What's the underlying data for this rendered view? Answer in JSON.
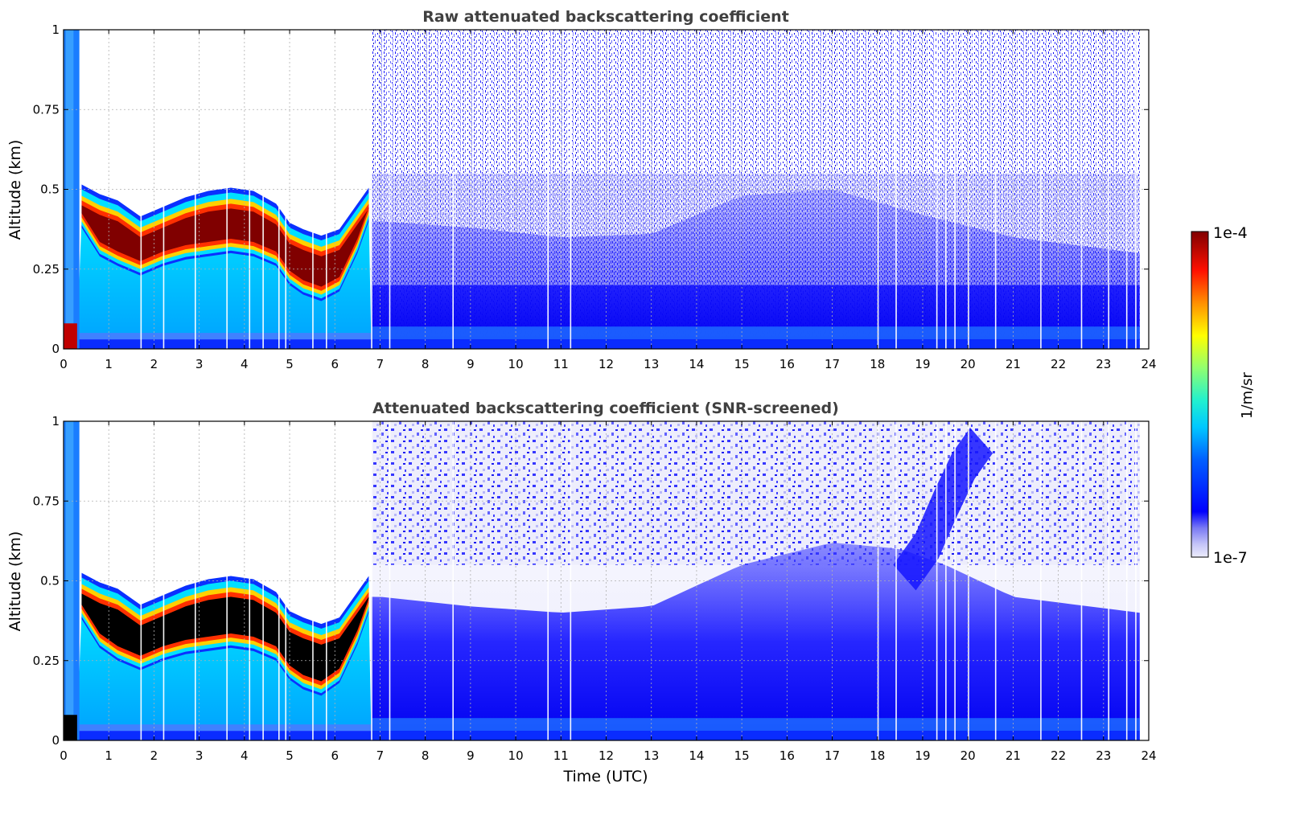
{
  "chart_data": [
    {
      "type": "heatmap",
      "title": "Raw attenuated backscattering coefficient",
      "xlabel": "",
      "ylabel": "Altitude (km)",
      "xlim": [
        0,
        24
      ],
      "ylim": [
        0,
        1
      ],
      "x_ticks": [
        "0",
        "1",
        "2",
        "3",
        "4",
        "5",
        "6",
        "7",
        "8",
        "9",
        "10",
        "11",
        "12",
        "13",
        "14",
        "15",
        "16",
        "17",
        "18",
        "19",
        "20",
        "21",
        "22",
        "23",
        "24"
      ],
      "y_ticks": [
        "0",
        "0.25",
        "0.5",
        "0.75",
        "1"
      ],
      "grid": true,
      "cloud_layer": {
        "time_utc": [
          0.4,
          0.8,
          1.2,
          1.7,
          2.2,
          2.7,
          3.2,
          3.7,
          4.2,
          4.7,
          5.0,
          5.3,
          5.7,
          6.1,
          6.5,
          6.75
        ],
        "top_km": [
          0.5,
          0.47,
          0.45,
          0.4,
          0.43,
          0.46,
          0.48,
          0.49,
          0.48,
          0.44,
          0.38,
          0.36,
          0.34,
          0.36,
          0.44,
          0.49
        ],
        "base_km": [
          0.4,
          0.31,
          0.28,
          0.25,
          0.28,
          0.3,
          0.31,
          0.32,
          0.31,
          0.28,
          0.22,
          0.19,
          0.17,
          0.2,
          0.32,
          0.42
        ]
      },
      "mixed_layer_top_km": {
        "time_utc": [
          7,
          9,
          11,
          13,
          15,
          17,
          19,
          21,
          23.8
        ],
        "top_km": [
          0.4,
          0.38,
          0.35,
          0.36,
          0.48,
          0.5,
          0.42,
          0.35,
          0.3
        ]
      },
      "noise_fraction_above": 0.65
    },
    {
      "type": "heatmap",
      "title": "Attenuated backscattering coefficient (SNR-screened)",
      "xlabel": "Time (UTC)",
      "ylabel": "Altitude (km)",
      "xlim": [
        0,
        24
      ],
      "ylim": [
        0,
        1
      ],
      "x_ticks": [
        "0",
        "1",
        "2",
        "3",
        "4",
        "5",
        "6",
        "7",
        "8",
        "9",
        "10",
        "11",
        "12",
        "13",
        "14",
        "15",
        "16",
        "17",
        "18",
        "19",
        "20",
        "21",
        "22",
        "23",
        "24"
      ],
      "y_ticks": [
        "0",
        "0.25",
        "0.5",
        "0.75",
        "1"
      ],
      "grid": true,
      "cloud_layer": {
        "time_utc": [
          0.4,
          0.8,
          1.2,
          1.7,
          2.2,
          2.7,
          3.2,
          3.7,
          4.2,
          4.7,
          5.0,
          5.3,
          5.7,
          6.1,
          6.5,
          6.75
        ],
        "top_km": [
          0.51,
          0.48,
          0.46,
          0.41,
          0.44,
          0.47,
          0.49,
          0.5,
          0.49,
          0.45,
          0.39,
          0.37,
          0.35,
          0.37,
          0.45,
          0.5
        ],
        "base_km": [
          0.4,
          0.31,
          0.27,
          0.24,
          0.27,
          0.29,
          0.3,
          0.31,
          0.3,
          0.27,
          0.21,
          0.18,
          0.16,
          0.2,
          0.32,
          0.42
        ]
      },
      "mixed_layer_top_km": {
        "time_utc": [
          7,
          9,
          11,
          13,
          15,
          17,
          18.5,
          19.5,
          21,
          23.8
        ],
        "top_km": [
          0.45,
          0.42,
          0.4,
          0.42,
          0.55,
          0.62,
          0.6,
          0.55,
          0.45,
          0.4
        ]
      },
      "plume": {
        "time_utc": [
          18.5,
          19.0,
          19.4,
          19.8,
          20.2
        ],
        "altitude_km": [
          0.55,
          0.65,
          0.78,
          0.9,
          0.98
        ]
      }
    }
  ],
  "colorbar": {
    "label": "1/m/sr",
    "max_label": "1e-4",
    "min_label": "1e-7",
    "range": [
      1e-07,
      0.0001
    ],
    "scale": "log",
    "colormap": "jet"
  },
  "colors": {
    "title": "#404040",
    "grid": "#b0b0b0"
  }
}
